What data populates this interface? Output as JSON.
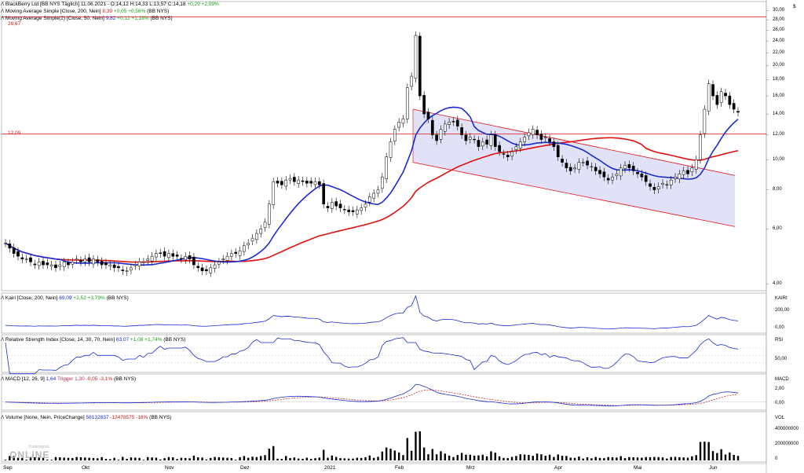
{
  "header": {
    "title_prefix": "BlackBerry Ltd [BB NYS Täglich] 11.06.2021 - O:14,12 H:14,33 L:13,57 C:14,18",
    "title_change": "+0,29 +2,09%",
    "ma1_prefix": "Moving Average Simple [Close, 200, Nein]",
    "ma1_value": "8,39",
    "ma1_change": "+0,05 +0,56%",
    "ma1_suffix": "(BB NYS)",
    "ma2_prefix": "Moving Average Simple(2) [Close, 50, Nein]",
    "ma2_value": "9,82",
    "ma2_change": "+0,12 +1,18%",
    "ma2_suffix": "(BB NYS)",
    "line1_label": "28,67",
    "line2_label": "12,09"
  },
  "panels": {
    "kairi": {
      "prefix": "Kairi [Close, 200, Nein]",
      "value": "69,09",
      "change": "+2,52 +3,79%",
      "suffix": "(BB NYS)",
      "axis_name": "KAIRI",
      "ticks": [
        "200,00",
        "0,00"
      ]
    },
    "rsi": {
      "prefix": "Relative Strength Index [Close, 14, 30, 70, Nein]",
      "value": "63,07",
      "change": "+1,08 +1,74%",
      "suffix": "(BB NYS)",
      "axis_name": "RSI",
      "ticks": [
        "50,00"
      ]
    },
    "macd": {
      "prefix": "MACD [12, 26, 9]",
      "value": "1,64",
      "trigger_label": "Trigger",
      "trigger_value": "1,30",
      "change": "-0,05 -3,1%",
      "suffix": "(BB NYS)",
      "axis_name": "MACD",
      "ticks": [
        "2,00",
        "0,00"
      ]
    },
    "volume": {
      "prefix": "Volume [None, Nein, PriceChange]",
      "value": "56132837",
      "change": "-12478575 -18%",
      "suffix": "(BB NYS)",
      "axis_name": "VOL",
      "ticks": [
        "400000000",
        "200000000",
        "0"
      ]
    }
  },
  "price_axis_label": "$",
  "watermark": {
    "small": "Tradesignal",
    "big": "ONLINE"
  },
  "months": [
    "Sep",
    "Okt",
    "Nov",
    "Dez",
    "2021",
    "Feb",
    "Mrz",
    "Apr",
    "Mai",
    "Jun"
  ],
  "colors": {
    "up": "#ffffff",
    "down": "#000000",
    "ma200": "#e01010",
    "ma50": "#1a2bd0",
    "channel_fill": "#dcdcf7",
    "channel_line": "#e01010",
    "hline": "#e01010",
    "indicator": "#1a2bd0",
    "trigger": "#c03030"
  },
  "chart_data": {
    "type": "candlestick",
    "title": "BlackBerry Ltd [BB NYS Täglich]",
    "yaxis": {
      "scale": "log",
      "range": [
        3.8,
        31
      ],
      "ticks": [
        4,
        6,
        8,
        10,
        12,
        14,
        16,
        18,
        20,
        22,
        24,
        26,
        28,
        30
      ]
    },
    "x": [
      "Sep",
      "Okt",
      "Nov",
      "Dez",
      "2021",
      "Feb",
      "Mrz",
      "Apr",
      "Mai",
      "Jun"
    ],
    "close_series": [
      5.4,
      5.2,
      5.0,
      4.9,
      4.8,
      4.8,
      4.7,
      4.6,
      4.7,
      4.6,
      4.6,
      4.6,
      4.5,
      4.6,
      4.7,
      4.6,
      4.7,
      4.8,
      4.7,
      4.8,
      4.7,
      4.8,
      4.7,
      4.6,
      4.6,
      4.6,
      4.5,
      4.5,
      4.4,
      4.4,
      4.5,
      4.6,
      4.7,
      4.7,
      4.8,
      4.9,
      5.0,
      5.0,
      4.9,
      5.0,
      4.9,
      4.9,
      4.8,
      4.9,
      4.8,
      4.6,
      4.5,
      4.4,
      4.4,
      4.5,
      4.6,
      4.7,
      4.8,
      4.9,
      5.0,
      5.0,
      5.1,
      5.3,
      5.4,
      5.6,
      5.8,
      6.0,
      6.3,
      7.2,
      8.5,
      8.4,
      8.3,
      8.6,
      8.7,
      8.5,
      8.6,
      8.5,
      8.4,
      8.4,
      8.5,
      8.3,
      7.2,
      7.0,
      7.3,
      7.1,
      7.0,
      6.9,
      6.8,
      6.8,
      6.9,
      7.0,
      7.2,
      7.6,
      7.8,
      8.0,
      8.8,
      10.2,
      11.4,
      12.5,
      13.2,
      13.5,
      17.0,
      18.5,
      25.0,
      16.0,
      14.0,
      13.5,
      12.0,
      11.5,
      12.5,
      13.0,
      13.2,
      13.2,
      12.8,
      12.0,
      11.5,
      11.8,
      11.6,
      11.0,
      11.4,
      11.2,
      12.0,
      11.0,
      10.6,
      10.4,
      10.2,
      10.6,
      11.0,
      11.4,
      11.8,
      12.2,
      12.5,
      12.0,
      11.6,
      11.8,
      11.4,
      11.0,
      10.2,
      9.8,
      9.4,
      9.2,
      9.4,
      9.8,
      9.8,
      9.6,
      9.5,
      9.2,
      9.0,
      8.8,
      8.6,
      8.8,
      9.0,
      9.4,
      9.6,
      9.4,
      9.2,
      9.0,
      8.8,
      8.5,
      8.2,
      8.0,
      8.2,
      8.4,
      8.3,
      8.6,
      8.8,
      9.0,
      9.2,
      9.0,
      9.4,
      10.0,
      12.0,
      14.5,
      17.5,
      16.0,
      15.0,
      16.5,
      16.0,
      15.0,
      14.5,
      14.18
    ],
    "series": [
      {
        "name": "Moving Average Simple [Close, 200, Nein]",
        "last": 8.39
      },
      {
        "name": "Moving Average Simple(2) [Close, 50, Nein]",
        "last": 9.82
      }
    ],
    "horizontal_lines": [
      28.67,
      12.09
    ],
    "channel": {
      "upper": [
        [
          0.0,
          14.5
        ],
        [
          1.0,
          8.9
        ]
      ],
      "lower": [
        [
          0.0,
          9.8
        ],
        [
          1.0,
          6.1
        ]
      ]
    },
    "indicators": [
      {
        "name": "Kairi [Close, 200, Nein]",
        "last": 69.09
      },
      {
        "name": "Relative Strength Index [Close, 14, 30, 70, Nein]",
        "last": 63.07
      },
      {
        "name": "MACD [12, 26, 9]",
        "last": 1.64,
        "trigger": 1.3
      },
      {
        "name": "Volume [None, Nein, PriceChange]",
        "last": 56132837
      }
    ]
  }
}
